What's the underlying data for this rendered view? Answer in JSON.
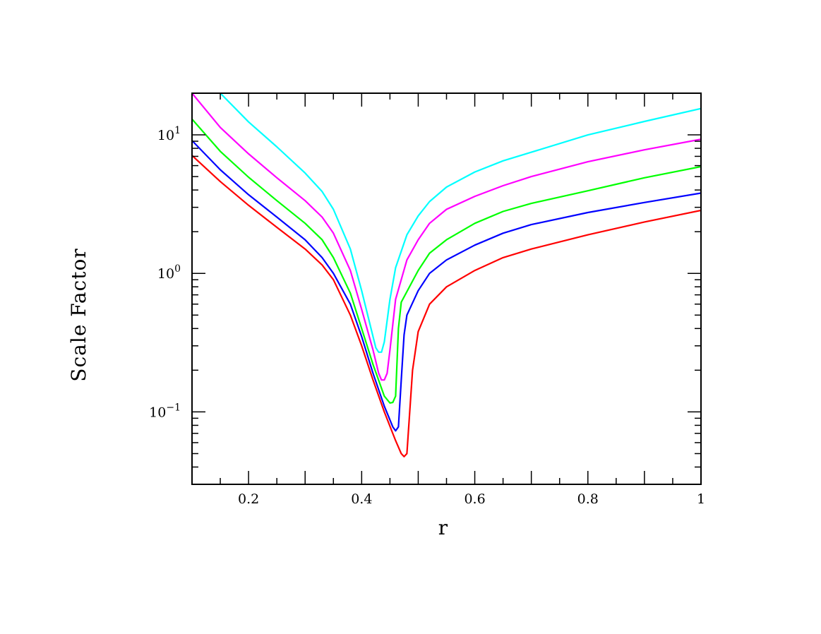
{
  "chart_data": {
    "type": "line",
    "title": "",
    "xlabel": "r",
    "ylabel": "Scale Factor",
    "xlim": [
      0.1,
      1.0
    ],
    "ylim": [
      0.03,
      20
    ],
    "yscale": "log",
    "grid": false,
    "legend": "none",
    "x_ticks": [
      {
        "value": 0.2,
        "label": "0.2"
      },
      {
        "value": 0.4,
        "label": "0.4"
      },
      {
        "value": 0.6,
        "label": "0.6"
      },
      {
        "value": 0.8,
        "label": "0.8"
      },
      {
        "value": 1.0,
        "label": "1"
      }
    ],
    "y_ticks": [
      {
        "value": 0.1,
        "base": "10",
        "exponent": "−1"
      },
      {
        "value": 1,
        "base": "10",
        "exponent": "0"
      },
      {
        "value": 10,
        "base": "10",
        "exponent": "1"
      }
    ],
    "series": [
      {
        "color": "#ff0000",
        "x": [
          0.1,
          0.15,
          0.2,
          0.25,
          0.3,
          0.33,
          0.35,
          0.38,
          0.4,
          0.42,
          0.44,
          0.46,
          0.47,
          0.475,
          0.48,
          0.485,
          0.49,
          0.5,
          0.52,
          0.55,
          0.6,
          0.65,
          0.7,
          0.8,
          0.9,
          1.0
        ],
        "y": [
          7.1,
          4.6,
          3.1,
          2.15,
          1.5,
          1.15,
          0.9,
          0.5,
          0.3,
          0.17,
          0.1,
          0.062,
          0.05,
          0.0475,
          0.05,
          0.1,
          0.2,
          0.38,
          0.6,
          0.8,
          1.05,
          1.3,
          1.5,
          1.9,
          2.35,
          2.85
        ]
      },
      {
        "color": "#0000ff",
        "x": [
          0.1,
          0.15,
          0.2,
          0.25,
          0.3,
          0.33,
          0.35,
          0.38,
          0.4,
          0.42,
          0.44,
          0.455,
          0.46,
          0.465,
          0.47,
          0.475,
          0.48,
          0.5,
          0.52,
          0.55,
          0.6,
          0.65,
          0.7,
          0.8,
          0.9,
          1.0
        ],
        "y": [
          9.1,
          5.6,
          3.7,
          2.55,
          1.75,
          1.3,
          1.0,
          0.6,
          0.35,
          0.19,
          0.11,
          0.078,
          0.073,
          0.078,
          0.17,
          0.36,
          0.5,
          0.75,
          1.0,
          1.25,
          1.6,
          1.95,
          2.25,
          2.75,
          3.25,
          3.8
        ]
      },
      {
        "color": "#00ff00",
        "x": [
          0.1,
          0.15,
          0.2,
          0.25,
          0.3,
          0.33,
          0.35,
          0.38,
          0.4,
          0.42,
          0.44,
          0.45,
          0.455,
          0.46,
          0.465,
          0.47,
          0.5,
          0.52,
          0.55,
          0.6,
          0.65,
          0.7,
          0.8,
          0.9,
          1.0
        ],
        "y": [
          13,
          7.6,
          4.95,
          3.35,
          2.3,
          1.75,
          1.3,
          0.72,
          0.4,
          0.22,
          0.13,
          0.116,
          0.117,
          0.13,
          0.4,
          0.62,
          1.05,
          1.4,
          1.75,
          2.3,
          2.8,
          3.2,
          3.95,
          4.9,
          5.9
        ]
      },
      {
        "color": "#ff00ff",
        "x": [
          0.1,
          0.15,
          0.2,
          0.25,
          0.3,
          0.33,
          0.35,
          0.38,
          0.4,
          0.42,
          0.43,
          0.435,
          0.44,
          0.445,
          0.45,
          0.46,
          0.48,
          0.5,
          0.52,
          0.55,
          0.6,
          0.65,
          0.7,
          0.8,
          0.9,
          1.0
        ],
        "y": [
          20,
          11.3,
          7.3,
          4.9,
          3.35,
          2.55,
          1.95,
          1.05,
          0.55,
          0.28,
          0.19,
          0.17,
          0.17,
          0.19,
          0.28,
          0.65,
          1.25,
          1.75,
          2.3,
          2.9,
          3.6,
          4.3,
          5.0,
          6.4,
          7.8,
          9.3
        ]
      },
      {
        "color": "#00ffff",
        "x": [
          0.15,
          0.2,
          0.25,
          0.3,
          0.33,
          0.35,
          0.38,
          0.4,
          0.42,
          0.425,
          0.43,
          0.435,
          0.44,
          0.45,
          0.46,
          0.48,
          0.5,
          0.52,
          0.55,
          0.6,
          0.65,
          0.7,
          0.8,
          0.9,
          1.0
        ],
        "y": [
          20,
          12.4,
          8.2,
          5.3,
          3.9,
          2.9,
          1.5,
          0.75,
          0.35,
          0.29,
          0.27,
          0.27,
          0.32,
          0.65,
          1.1,
          1.9,
          2.6,
          3.3,
          4.2,
          5.4,
          6.5,
          7.5,
          10,
          12.5,
          15.5
        ]
      }
    ]
  }
}
